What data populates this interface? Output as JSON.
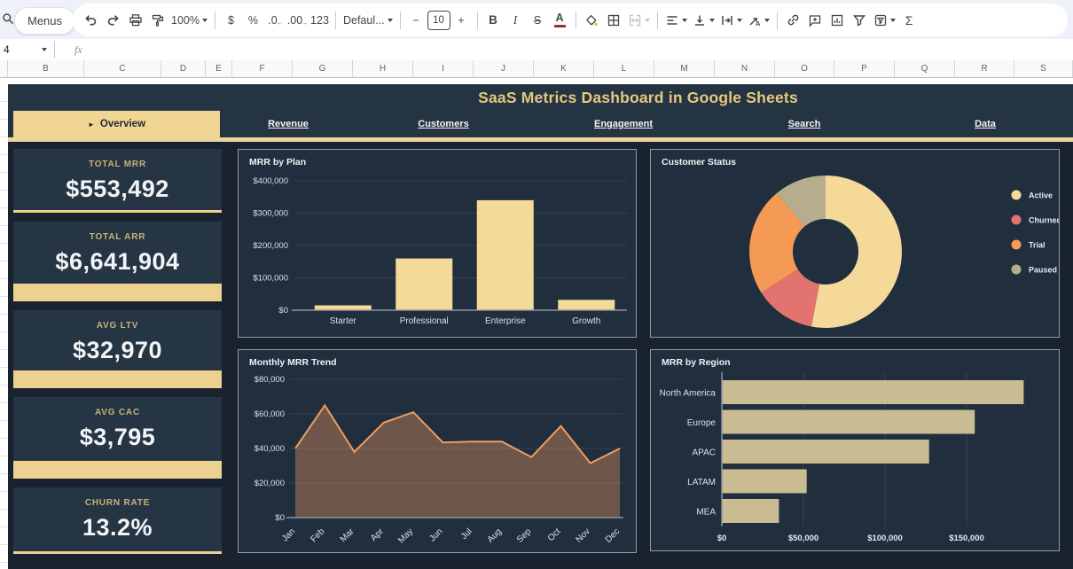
{
  "toolbar": {
    "menus": "Menus",
    "zoom": "100%",
    "currency": "$",
    "percent": "%",
    "decrease_decimal": ".0",
    "increase_decimal": ".00",
    "more_formats": "123",
    "font": "Defaul...",
    "minus": "−",
    "font_size": "10",
    "plus": "+",
    "bold": "B",
    "italic": "I",
    "strikethrough": "S",
    "text_color": "A",
    "functions": "Σ"
  },
  "formula_bar": {
    "name_box": "4",
    "fx_label": "fx"
  },
  "grid": {
    "columns": [
      "B",
      "C",
      "D",
      "E",
      "F",
      "G",
      "H",
      "I",
      "J",
      "K",
      "L",
      "M",
      "N",
      "O",
      "P",
      "Q",
      "R",
      "S"
    ]
  },
  "dashboard": {
    "title": "SaaS Metrics Dashboard in Google Sheets",
    "tab_arrow": "►",
    "tabs": [
      {
        "label": "Overview",
        "active": true
      },
      {
        "label": "Revenue",
        "active": false
      },
      {
        "label": "Customers",
        "active": false
      },
      {
        "label": "Engagement",
        "active": false
      },
      {
        "label": "Search",
        "active": false
      },
      {
        "label": "Data",
        "active": false
      }
    ],
    "kpis": [
      {
        "label": "TOTAL MRR",
        "value": "$553,492",
        "accent": "thin"
      },
      {
        "label": "TOTAL ARR",
        "value": "$6,641,904",
        "accent": "thick"
      },
      {
        "label": "AVG LTV",
        "value": "$32,970",
        "accent": "thick"
      },
      {
        "label": "AVG CAC",
        "value": "$3,795",
        "accent": "thick"
      },
      {
        "label": "CHURN RATE",
        "value": "13.2%",
        "accent": "thin"
      }
    ],
    "colors": {
      "accent_gold": "#f0d593",
      "title_gold": "#e6c87e",
      "page_bg": "#19232f",
      "panel_bg": "#202e3e",
      "card_bg": "#263544"
    }
  },
  "chart_data": [
    {
      "id": "mrr_by_plan",
      "type": "bar",
      "title": "MRR by Plan",
      "categories": [
        "Starter",
        "Professional",
        "Enterprise",
        "Growth"
      ],
      "values": [
        15000,
        160000,
        340000,
        32000
      ],
      "ylim": [
        0,
        400000
      ],
      "yticks": [
        "$0",
        "$100,000",
        "$200,000",
        "$300,000",
        "$400,000"
      ],
      "bar_color": "#f4da99",
      "grid": true,
      "legend": "none"
    },
    {
      "id": "customer_status",
      "type": "pie",
      "title": "Customer Status",
      "donut": true,
      "labels": [
        "Active",
        "Churned",
        "Trial",
        "Paused"
      ],
      "values": [
        53,
        13,
        23,
        11
      ],
      "colors": [
        "#f4d998",
        "#e2736f",
        "#f49a55",
        "#b5ad8e"
      ],
      "legend": "right"
    },
    {
      "id": "monthly_mrr_trend",
      "type": "area",
      "title": "Monthly MRR Trend",
      "x": [
        "Jan",
        "Feb",
        "Mar",
        "Apr",
        "May",
        "Jun",
        "Jul",
        "Aug",
        "Sep",
        "Oct",
        "Nov",
        "Dec"
      ],
      "values": [
        40000,
        65000,
        38000,
        55000,
        61000,
        43500,
        44000,
        44000,
        35000,
        53000,
        31500,
        40000
      ],
      "ylim": [
        0,
        80000
      ],
      "yticks": [
        "$0",
        "$20,000",
        "$40,000",
        "$60,000",
        "$80,000"
      ],
      "line_color": "#ee9c5f",
      "fill_color": "rgba(238,156,95,0.38)",
      "grid": true,
      "legend": "none"
    },
    {
      "id": "mrr_by_region",
      "type": "hbar",
      "title": "MRR by Region",
      "categories": [
        "North America",
        "Europe",
        "APAC",
        "LATAM",
        "MEA"
      ],
      "values": [
        185000,
        155000,
        127000,
        52000,
        35000
      ],
      "xlim": [
        0,
        200000
      ],
      "xticks": [
        {
          "v": 0,
          "label": "$0"
        },
        {
          "v": 50000,
          "label": "$50,000"
        },
        {
          "v": 100000,
          "label": "$100,000"
        },
        {
          "v": 150000,
          "label": "$150,000"
        }
      ],
      "bar_color": "#c9bc93",
      "grid": true,
      "legend": "none"
    }
  ]
}
